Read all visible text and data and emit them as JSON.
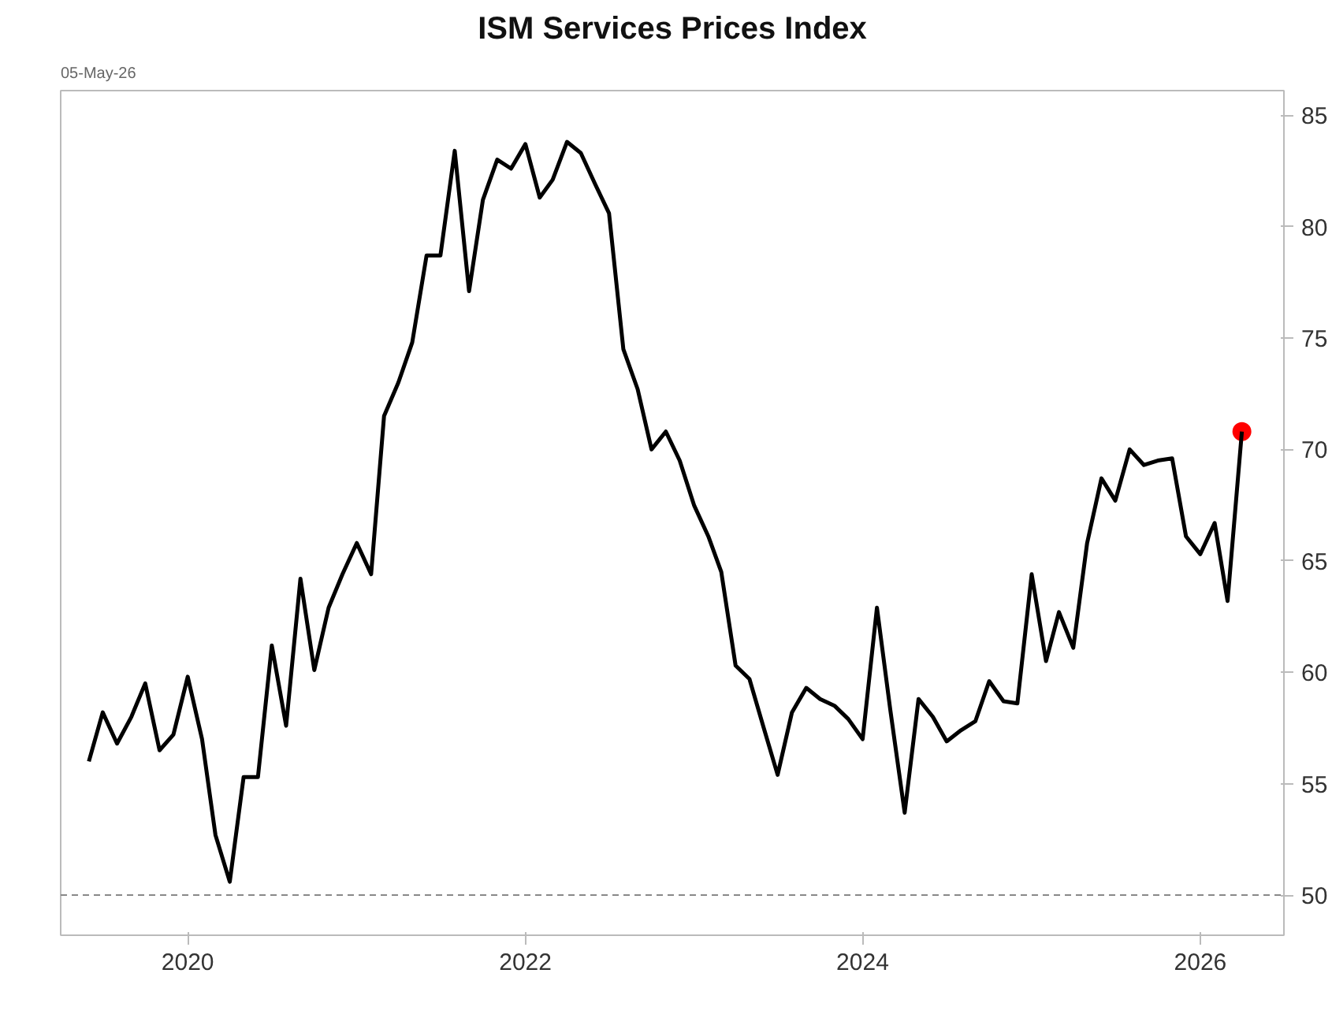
{
  "chart_data": {
    "type": "line",
    "title": "ISM Services Prices Index",
    "annotations": [
      "05-May-26"
    ],
    "series": [
      {
        "color": "#000000",
        "x": [
          "2019-06",
          "2019-07",
          "2019-08",
          "2019-09",
          "2019-10",
          "2019-11",
          "2019-12",
          "2020-01",
          "2020-02",
          "2020-03",
          "2020-04",
          "2020-05",
          "2020-06",
          "2020-07",
          "2020-08",
          "2020-09",
          "2020-10",
          "2020-11",
          "2020-12",
          "2021-01",
          "2021-02",
          "2021-03",
          "2021-04",
          "2021-05",
          "2021-06",
          "2021-07",
          "2021-08",
          "2021-09",
          "2021-10",
          "2021-11",
          "2021-12",
          "2022-01",
          "2022-02",
          "2022-03",
          "2022-04",
          "2022-05",
          "2022-06",
          "2022-07",
          "2022-08",
          "2022-09",
          "2022-10",
          "2022-11",
          "2022-12",
          "2023-01",
          "2023-02",
          "2023-03",
          "2023-04",
          "2023-05",
          "2023-06",
          "2023-07",
          "2023-08",
          "2023-09",
          "2023-10",
          "2023-11",
          "2023-12",
          "2024-01",
          "2024-02",
          "2024-03",
          "2024-04",
          "2024-05",
          "2024-06",
          "2024-07",
          "2024-08",
          "2024-09",
          "2024-10",
          "2024-11",
          "2024-12",
          "2025-01",
          "2025-02",
          "2025-03",
          "2025-04",
          "2025-05",
          "2025-06",
          "2025-07",
          "2025-08",
          "2025-09",
          "2025-10",
          "2025-11",
          "2025-12",
          "2026-01",
          "2026-02",
          "2026-03",
          "2026-04"
        ],
        "values": [
          56.0,
          58.2,
          56.8,
          58.0,
          59.5,
          56.5,
          57.2,
          59.8,
          57.0,
          52.7,
          50.6,
          55.3,
          55.3,
          61.2,
          57.6,
          64.2,
          60.1,
          62.9,
          64.4,
          65.8,
          64.4,
          71.5,
          73.0,
          74.8,
          78.7,
          78.7,
          83.4,
          77.1,
          81.2,
          83.0,
          82.6,
          83.7,
          81.3,
          82.1,
          83.8,
          83.3,
          81.9,
          80.6,
          74.5,
          72.7,
          70.0,
          70.8,
          69.5,
          67.5,
          66.1,
          64.5,
          60.3,
          59.7,
          57.5,
          55.4,
          58.2,
          59.3,
          58.8,
          58.5,
          57.9,
          57.0,
          62.9,
          58.3,
          53.7,
          58.8,
          58.0,
          56.9,
          57.4,
          57.8,
          59.6,
          58.7,
          58.6,
          64.4,
          60.5,
          62.7,
          61.1,
          65.8,
          68.7,
          67.7,
          70.0,
          69.3,
          69.5,
          69.6,
          66.1,
          65.3,
          66.7,
          63.2,
          70.8
        ]
      },
      {
        "type": "scatter",
        "color": "#ff0000",
        "marker": "circle",
        "x": [
          "2026-04"
        ],
        "values": [
          70.8
        ]
      }
    ],
    "xlim": [
      "2019-04",
      "2026-07"
    ],
    "xticks": [
      "2020",
      "2022",
      "2024",
      "2026"
    ],
    "ylim": [
      48.2,
      86.1
    ],
    "yticks": [
      50,
      55,
      60,
      65,
      70,
      75,
      80,
      85
    ],
    "ref_lines": [
      {
        "axis": "y",
        "value": 50,
        "color": "#888888",
        "line_style": "dashed"
      }
    ],
    "grid": false,
    "line_style": "solid",
    "marker": "none"
  }
}
